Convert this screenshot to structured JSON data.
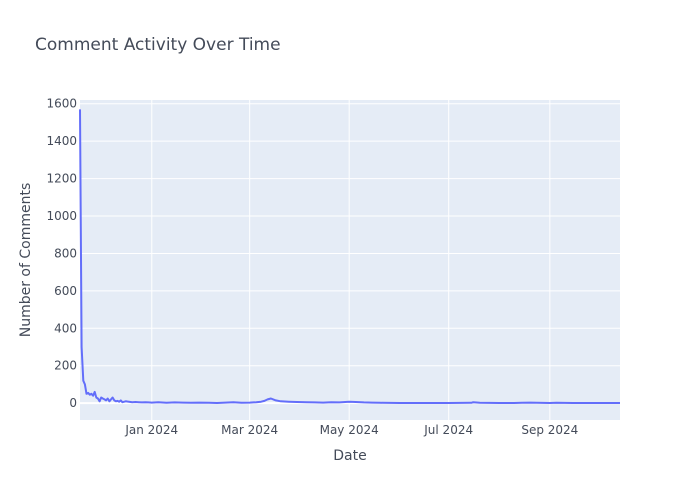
{
  "chart_data": {
    "type": "line",
    "title": "Comment Activity Over Time",
    "xlabel": "Date",
    "ylabel": "Number of Comments",
    "xlim": [
      "2023-11-18",
      "2024-10-14"
    ],
    "ylim": [
      -90,
      1620
    ],
    "grid": true,
    "legend": "none",
    "x_ticks": [
      {
        "date": "2024-01-01",
        "label": "Jan 2024"
      },
      {
        "date": "2024-03-01",
        "label": "Mar 2024"
      },
      {
        "date": "2024-05-01",
        "label": "May 2024"
      },
      {
        "date": "2024-07-01",
        "label": "Jul 2024"
      },
      {
        "date": "2024-09-01",
        "label": "Sep 2024"
      }
    ],
    "y_ticks": [
      0,
      200,
      400,
      600,
      800,
      1000,
      1200,
      1400,
      1600
    ],
    "series": [
      {
        "color": "#636efa",
        "x": [
          "2023-11-18",
          "2023-11-19",
          "2023-11-20",
          "2023-11-21",
          "2023-11-22",
          "2023-11-23",
          "2023-11-24",
          "2023-11-25",
          "2023-11-26",
          "2023-11-27",
          "2023-11-28",
          "2023-11-29",
          "2023-11-30",
          "2023-12-01",
          "2023-12-02",
          "2023-12-03",
          "2023-12-04",
          "2023-12-05",
          "2023-12-06",
          "2023-12-07",
          "2023-12-08",
          "2023-12-09",
          "2023-12-10",
          "2023-12-11",
          "2023-12-12",
          "2023-12-13",
          "2023-12-14",
          "2023-12-16",
          "2023-12-18",
          "2023-12-20",
          "2023-12-22",
          "2023-12-24",
          "2023-12-26",
          "2023-12-28",
          "2023-12-30",
          "2024-01-01",
          "2024-01-05",
          "2024-01-10",
          "2024-01-15",
          "2024-01-20",
          "2024-01-25",
          "2024-01-30",
          "2024-02-05",
          "2024-02-10",
          "2024-02-15",
          "2024-02-20",
          "2024-02-25",
          "2024-03-01",
          "2024-03-05",
          "2024-03-08",
          "2024-03-10",
          "2024-03-12",
          "2024-03-14",
          "2024-03-17",
          "2024-03-20",
          "2024-03-25",
          "2024-03-30",
          "2024-04-05",
          "2024-04-10",
          "2024-04-15",
          "2024-04-20",
          "2024-04-25",
          "2024-05-01",
          "2024-05-05",
          "2024-05-10",
          "2024-05-15",
          "2024-05-20",
          "2024-06-01",
          "2024-06-15",
          "2024-07-01",
          "2024-07-15",
          "2024-07-16",
          "2024-07-20",
          "2024-08-01",
          "2024-08-10",
          "2024-08-15",
          "2024-08-20",
          "2024-09-01",
          "2024-09-05",
          "2024-09-15",
          "2024-10-01",
          "2024-10-14"
        ],
        "y": [
          1570,
          300,
          120,
          100,
          50,
          55,
          45,
          50,
          40,
          60,
          30,
          25,
          10,
          30,
          25,
          20,
          15,
          25,
          10,
          20,
          30,
          15,
          10,
          12,
          8,
          15,
          5,
          10,
          8,
          5,
          6,
          5,
          4,
          5,
          4,
          3,
          5,
          2,
          4,
          3,
          2,
          3,
          2,
          1,
          3,
          5,
          2,
          3,
          5,
          8,
          12,
          20,
          25,
          15,
          10,
          8,
          6,
          5,
          4,
          3,
          5,
          4,
          8,
          6,
          4,
          3,
          2,
          1,
          1,
          1,
          2,
          5,
          2,
          1,
          1,
          2,
          3,
          1,
          2,
          1,
          1,
          1
        ]
      }
    ]
  }
}
